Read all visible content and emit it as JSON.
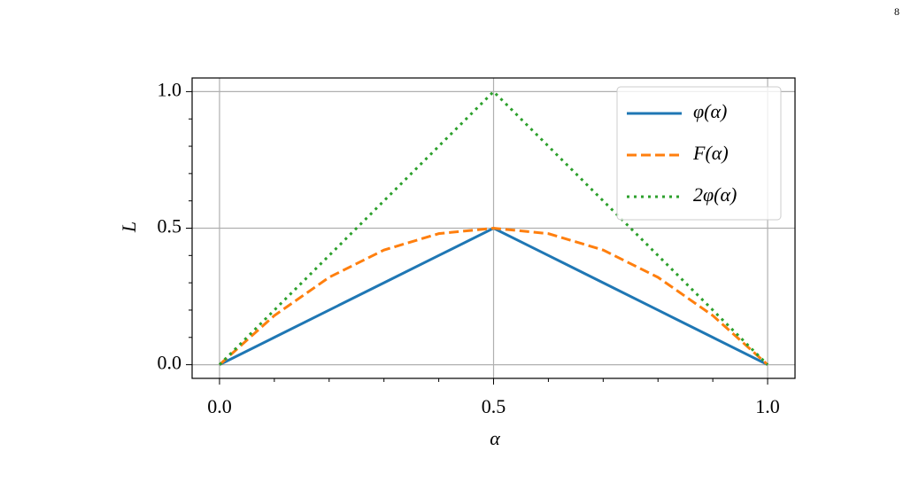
{
  "page_number": "8",
  "chart_data": {
    "type": "line",
    "xlabel": "α",
    "ylabel": "L",
    "x": [
      0,
      0.1,
      0.2,
      0.3,
      0.4,
      0.5,
      0.6,
      0.7,
      0.8,
      0.9,
      1
    ],
    "series": [
      {
        "name": "φ(α)",
        "color": "#1f77b4",
        "linestyle": "solid",
        "values": [
          0,
          0.1,
          0.2,
          0.3,
          0.4,
          0.5,
          0.4,
          0.3,
          0.2,
          0.1,
          0
        ]
      },
      {
        "name": "F(α)",
        "color": "#ff7f0e",
        "linestyle": "dashed",
        "values": [
          0,
          0.18,
          0.32,
          0.42,
          0.48,
          0.5,
          0.48,
          0.42,
          0.32,
          0.18,
          0
        ]
      },
      {
        "name": "2φ(α)",
        "color": "#2ca02c",
        "linestyle": "dotted",
        "values": [
          0,
          0.2,
          0.4,
          0.6,
          0.8,
          1,
          0.8,
          0.6,
          0.4,
          0.2,
          0
        ]
      }
    ],
    "xlim": [
      -0.05,
      1.05
    ],
    "ylim": [
      -0.05,
      1.05
    ],
    "xticks": [
      {
        "value": 0,
        "label": "0.0"
      },
      {
        "value": 0.5,
        "label": "0.5"
      },
      {
        "value": 1,
        "label": "1.0"
      }
    ],
    "yticks": [
      {
        "value": 0,
        "label": "0.0"
      },
      {
        "value": 0.5,
        "label": "0.5"
      },
      {
        "value": 1,
        "label": "1.0"
      }
    ],
    "xminorticks": [
      0.1,
      0.2,
      0.3,
      0.4,
      0.6,
      0.7,
      0.8,
      0.9
    ],
    "yminorticks": [
      0.1,
      0.2,
      0.3,
      0.4,
      0.6,
      0.7,
      0.8,
      0.9
    ],
    "grid": true,
    "legend": "upper right"
  }
}
